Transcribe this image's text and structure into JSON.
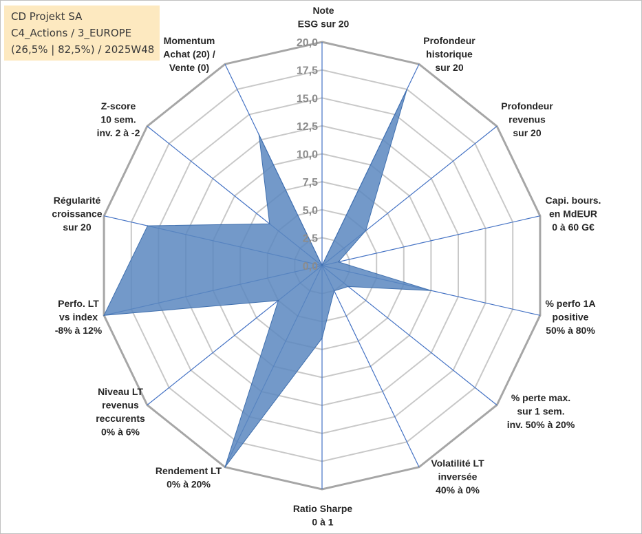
{
  "info": {
    "line1": "CD Projekt SA",
    "line2": "C4_Actions / 3_EUROPE",
    "line3": "(26,5% | 82,5%) / 2025W48"
  },
  "colors": {
    "fill": "#5b87c0",
    "stroke": "#3f6fae",
    "axis": "#4472c4",
    "grid": "#c8c8c8",
    "grid_outer": "#a6a6a6"
  },
  "chart_data": {
    "type": "radar",
    "title": "CD Projekt SA",
    "rmin": 0,
    "rmax": 20,
    "tick_step": 2.5,
    "tick_labels": [
      "0,0",
      "2,5",
      "5,0",
      "7,5",
      "10,0",
      "12,5",
      "15,0",
      "17,5",
      "20,0"
    ],
    "axes": [
      {
        "label": [
          "Note",
          "ESG sur 20"
        ],
        "value": 0.0
      },
      {
        "label": [
          "Profondeur",
          "historique",
          "sur 20"
        ],
        "value": 17.5
      },
      {
        "label": [
          "Profondeur",
          "revenus",
          "sur 20"
        ],
        "value": 5.0
      },
      {
        "label": [
          "Capi. bours.",
          "en MdEUR",
          "0 à 60 G€"
        ],
        "value": 1.5
      },
      {
        "label": [
          "% perfo 1A",
          "positive",
          "50% à 80%"
        ],
        "value": 10.0
      },
      {
        "label": [
          "% perte max.",
          "sur 1 sem.",
          "inv. 50% à 20%"
        ],
        "value": 3.0
      },
      {
        "label": [
          "Volatilité LT",
          "inversée",
          "40% à 0%"
        ],
        "value": 2.5
      },
      {
        "label": [
          "Ratio Sharpe",
          "0 à 1"
        ],
        "value": 6.5
      },
      {
        "label": [
          "Rendement LT",
          "0% à 20%"
        ],
        "value": 20.0
      },
      {
        "label": [
          "Niveau LT",
          "revenus",
          "reccurents",
          "0% à 6%"
        ],
        "value": 5.0
      },
      {
        "label": [
          "Perfo. LT",
          "vs index",
          "-8% à 12%"
        ],
        "value": 20.0
      },
      {
        "label": [
          "Régularité",
          "croissance",
          "sur 20"
        ],
        "value": 16.0
      },
      {
        "label": [
          "Z-score",
          "10 sem.",
          "inv. 2 à -2"
        ],
        "value": 6.0
      },
      {
        "label": [
          "Momentum",
          "Achat (20) /",
          "Vente (0)"
        ],
        "value": 13.0
      }
    ]
  }
}
